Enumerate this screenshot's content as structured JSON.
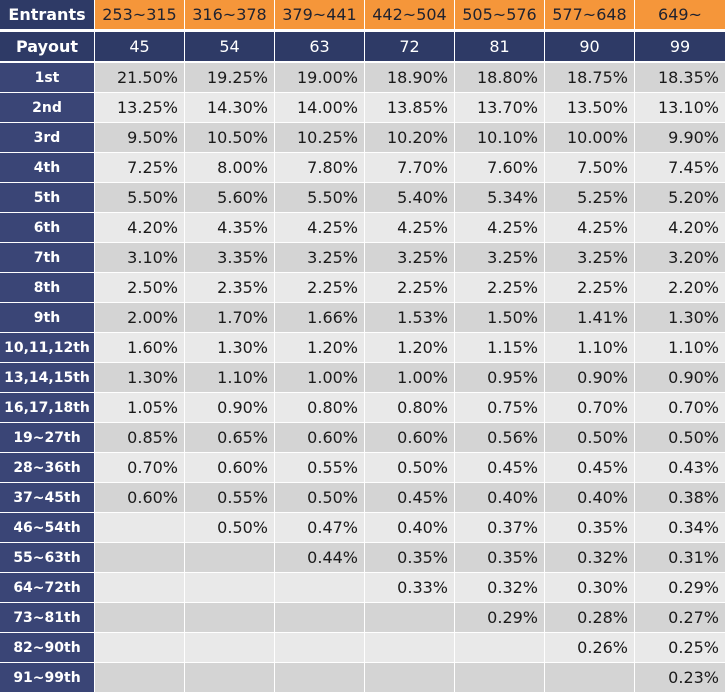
{
  "header": {
    "label": "Entrants",
    "ranges": [
      "253~315",
      "316~378",
      "379~441",
      "442~504",
      "505~576",
      "577~648",
      "649~"
    ]
  },
  "payout": {
    "label": "Payout",
    "counts": [
      "45",
      "54",
      "63",
      "72",
      "81",
      "90",
      "99"
    ]
  },
  "rows": [
    {
      "place": "1st",
      "values": [
        "21.50%",
        "19.25%",
        "19.00%",
        "18.90%",
        "18.80%",
        "18.75%",
        "18.35%"
      ]
    },
    {
      "place": "2nd",
      "values": [
        "13.25%",
        "14.30%",
        "14.00%",
        "13.85%",
        "13.70%",
        "13.50%",
        "13.10%"
      ]
    },
    {
      "place": "3rd",
      "values": [
        "9.50%",
        "10.50%",
        "10.25%",
        "10.20%",
        "10.10%",
        "10.00%",
        "9.90%"
      ]
    },
    {
      "place": "4th",
      "values": [
        "7.25%",
        "8.00%",
        "7.80%",
        "7.70%",
        "7.60%",
        "7.50%",
        "7.45%"
      ]
    },
    {
      "place": "5th",
      "values": [
        "5.50%",
        "5.60%",
        "5.50%",
        "5.40%",
        "5.34%",
        "5.25%",
        "5.20%"
      ]
    },
    {
      "place": "6th",
      "values": [
        "4.20%",
        "4.35%",
        "4.25%",
        "4.25%",
        "4.25%",
        "4.25%",
        "4.20%"
      ]
    },
    {
      "place": "7th",
      "values": [
        "3.10%",
        "3.35%",
        "3.25%",
        "3.25%",
        "3.25%",
        "3.25%",
        "3.20%"
      ]
    },
    {
      "place": "8th",
      "values": [
        "2.50%",
        "2.35%",
        "2.25%",
        "2.25%",
        "2.25%",
        "2.25%",
        "2.20%"
      ]
    },
    {
      "place": "9th",
      "values": [
        "2.00%",
        "1.70%",
        "1.66%",
        "1.53%",
        "1.50%",
        "1.41%",
        "1.30%"
      ]
    },
    {
      "place": "10,11,12th",
      "values": [
        "1.60%",
        "1.30%",
        "1.20%",
        "1.20%",
        "1.15%",
        "1.10%",
        "1.10%"
      ]
    },
    {
      "place": "13,14,15th",
      "values": [
        "1.30%",
        "1.10%",
        "1.00%",
        "1.00%",
        "0.95%",
        "0.90%",
        "0.90%"
      ]
    },
    {
      "place": "16,17,18th",
      "values": [
        "1.05%",
        "0.90%",
        "0.80%",
        "0.80%",
        "0.75%",
        "0.70%",
        "0.70%"
      ]
    },
    {
      "place": "19~27th",
      "values": [
        "0.85%",
        "0.65%",
        "0.60%",
        "0.60%",
        "0.56%",
        "0.50%",
        "0.50%"
      ]
    },
    {
      "place": "28~36th",
      "values": [
        "0.70%",
        "0.60%",
        "0.55%",
        "0.50%",
        "0.45%",
        "0.45%",
        "0.43%"
      ]
    },
    {
      "place": "37~45th",
      "values": [
        "0.60%",
        "0.55%",
        "0.50%",
        "0.45%",
        "0.40%",
        "0.40%",
        "0.38%"
      ]
    },
    {
      "place": "46~54th",
      "values": [
        "",
        "0.50%",
        "0.47%",
        "0.40%",
        "0.37%",
        "0.35%",
        "0.34%"
      ]
    },
    {
      "place": "55~63th",
      "values": [
        "",
        "",
        "0.44%",
        "0.35%",
        "0.35%",
        "0.32%",
        "0.31%"
      ]
    },
    {
      "place": "64~72th",
      "values": [
        "",
        "",
        "",
        "0.33%",
        "0.32%",
        "0.30%",
        "0.29%"
      ]
    },
    {
      "place": "73~81th",
      "values": [
        "",
        "",
        "",
        "",
        "0.29%",
        "0.28%",
        "0.27%"
      ]
    },
    {
      "place": "82~90th",
      "values": [
        "",
        "",
        "",
        "",
        "",
        "0.26%",
        "0.25%"
      ]
    },
    {
      "place": "91~99th",
      "values": [
        "",
        "",
        "",
        "",
        "",
        "",
        "0.23%"
      ]
    }
  ]
}
